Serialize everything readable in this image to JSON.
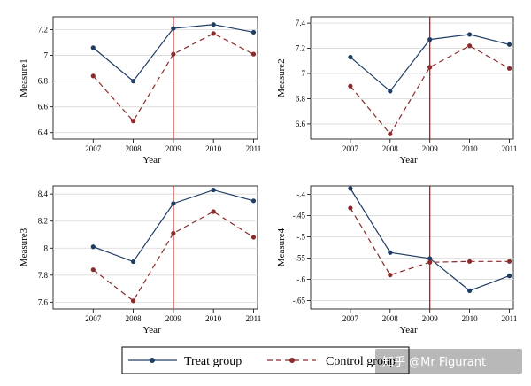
{
  "legend": {
    "treat": "Treat group",
    "control": "Control group"
  },
  "watermark": "知乎 @Mr Figurant",
  "colors": {
    "treat": "#1f3d63",
    "control": "#8b2a2a",
    "vline": "#c00000",
    "grid": "#d8d8d8",
    "axis": "#000000"
  },
  "chart_data": [
    {
      "type": "line",
      "xlabel": "Year",
      "ylabel": "Measure1",
      "x": [
        2007,
        2008,
        2009,
        2010,
        2011
      ],
      "xlim": [
        2006.0,
        2011.1
      ],
      "ylim": [
        6.35,
        7.3
      ],
      "yticks": [
        6.4,
        6.6,
        6.8,
        7,
        7.2
      ],
      "ytick_labels": [
        "6.4",
        "6.6",
        "6.8",
        "7",
        "7.2"
      ],
      "vline": 2009,
      "grid": true,
      "series": [
        {
          "name": "Treat group",
          "values": [
            7.06,
            6.8,
            7.21,
            7.24,
            7.18
          ]
        },
        {
          "name": "Control group",
          "values": [
            6.84,
            6.49,
            7.01,
            7.17,
            7.01
          ]
        }
      ]
    },
    {
      "type": "line",
      "xlabel": "Year",
      "ylabel": "Measure2",
      "x": [
        2007,
        2008,
        2009,
        2010,
        2011
      ],
      "xlim": [
        2006.0,
        2011.1
      ],
      "ylim": [
        6.48,
        7.45
      ],
      "yticks": [
        6.6,
        6.8,
        7,
        7.2,
        7.4
      ],
      "ytick_labels": [
        "6.6",
        "6.8",
        "7",
        "7.2",
        "7.4"
      ],
      "vline": 2009,
      "grid": true,
      "series": [
        {
          "name": "Treat group",
          "values": [
            7.13,
            6.86,
            7.27,
            7.31,
            7.23
          ]
        },
        {
          "name": "Control group",
          "values": [
            6.9,
            6.52,
            7.05,
            7.22,
            7.04
          ]
        }
      ]
    },
    {
      "type": "line",
      "xlabel": "Year",
      "ylabel": "Measure3",
      "x": [
        2007,
        2008,
        2009,
        2010,
        2011
      ],
      "xlim": [
        2006.0,
        2011.1
      ],
      "ylim": [
        7.55,
        8.46
      ],
      "yticks": [
        7.6,
        7.8,
        8,
        8.2,
        8.4
      ],
      "ytick_labels": [
        "7.6",
        "7.8",
        "8",
        "8.2",
        "8.4"
      ],
      "vline": 2009,
      "grid": true,
      "series": [
        {
          "name": "Treat group",
          "values": [
            8.01,
            7.9,
            8.33,
            8.43,
            8.35
          ]
        },
        {
          "name": "Control group",
          "values": [
            7.84,
            7.61,
            8.11,
            8.27,
            8.08
          ]
        }
      ]
    },
    {
      "type": "line",
      "xlabel": "Year",
      "ylabel": "Measure4",
      "x": [
        2007,
        2008,
        2009,
        2010,
        2011
      ],
      "xlim": [
        2006.0,
        2011.1
      ],
      "ylim": [
        -0.67,
        -0.38
      ],
      "yticks": [
        -0.65,
        -0.6,
        -0.55,
        -0.5,
        -0.45,
        -0.4
      ],
      "ytick_labels": [
        "-.65",
        "-.6",
        "-.55",
        "-.5",
        "-.45",
        "-.4"
      ],
      "vline": 2009,
      "grid": true,
      "series": [
        {
          "name": "Treat group",
          "values": [
            -0.386,
            -0.537,
            -0.551,
            -0.627,
            -0.592
          ]
        },
        {
          "name": "Control group",
          "values": [
            -0.432,
            -0.59,
            -0.56,
            -0.558,
            -0.558
          ]
        }
      ]
    }
  ]
}
